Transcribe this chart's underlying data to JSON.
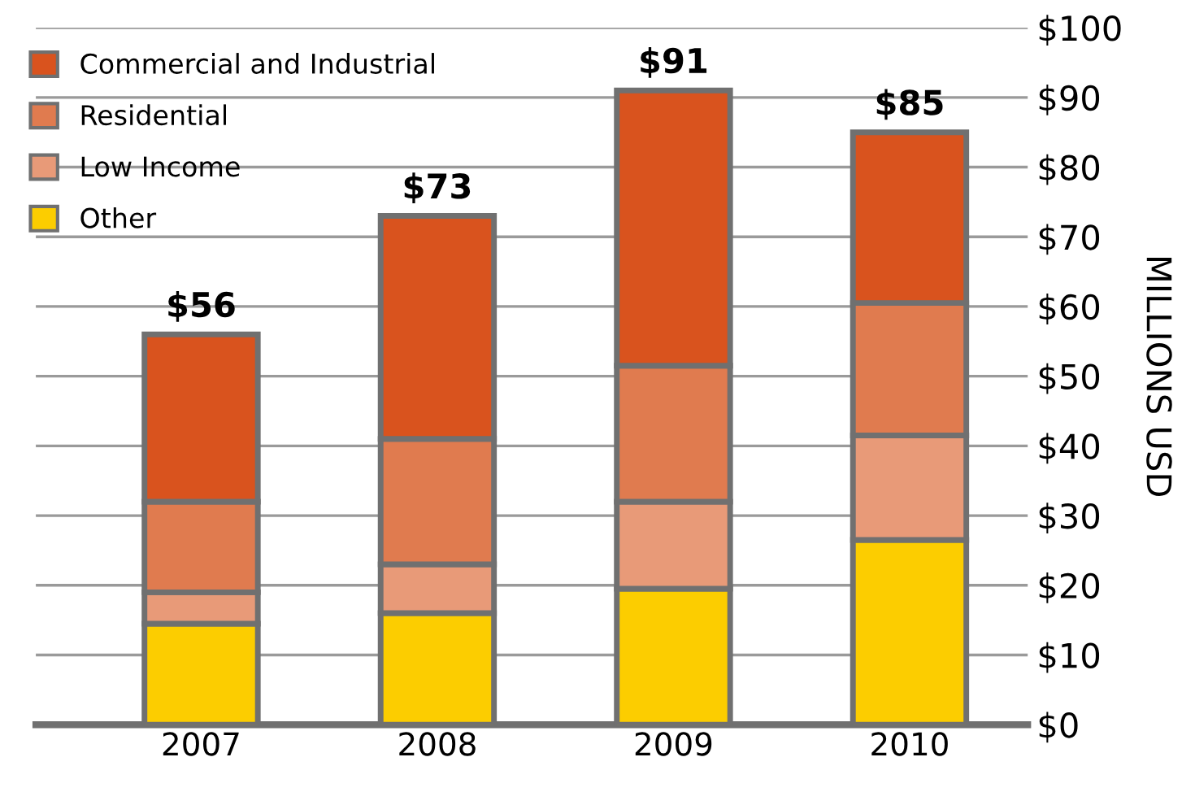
{
  "chart_data": {
    "type": "bar",
    "stacked": true,
    "ylabel": "MILLIONS USD",
    "categories": [
      "2007",
      "2008",
      "2009",
      "2010"
    ],
    "series": [
      {
        "name": "Other",
        "color": "#fccd00",
        "values": [
          14.5,
          16,
          19.5,
          26.5
        ]
      },
      {
        "name": "Low Income",
        "color": "#e89a78",
        "values": [
          4.5,
          7,
          12.5,
          15
        ]
      },
      {
        "name": "Residential",
        "color": "#e07b4f",
        "values": [
          13,
          18,
          19.5,
          19
        ]
      },
      {
        "name": "Commercial and Industrial",
        "color": "#d9531e",
        "values": [
          24,
          32,
          39.5,
          24.5
        ]
      }
    ],
    "totals": [
      "$56",
      "$73",
      "$91",
      "$85"
    ],
    "ylim": [
      0,
      100
    ],
    "yticks": [
      {
        "value": 0,
        "label": "$0"
      },
      {
        "value": 10,
        "label": "$10"
      },
      {
        "value": 20,
        "label": "$20"
      },
      {
        "value": 30,
        "label": "$30"
      },
      {
        "value": 40,
        "label": "$40"
      },
      {
        "value": 50,
        "label": "$50"
      },
      {
        "value": 60,
        "label": "$60"
      },
      {
        "value": 70,
        "label": "$70"
      },
      {
        "value": 80,
        "label": "$80"
      },
      {
        "value": 90,
        "label": "$90"
      },
      {
        "value": 100,
        "label": "$100"
      }
    ],
    "grid": "y",
    "legend": "top left"
  }
}
